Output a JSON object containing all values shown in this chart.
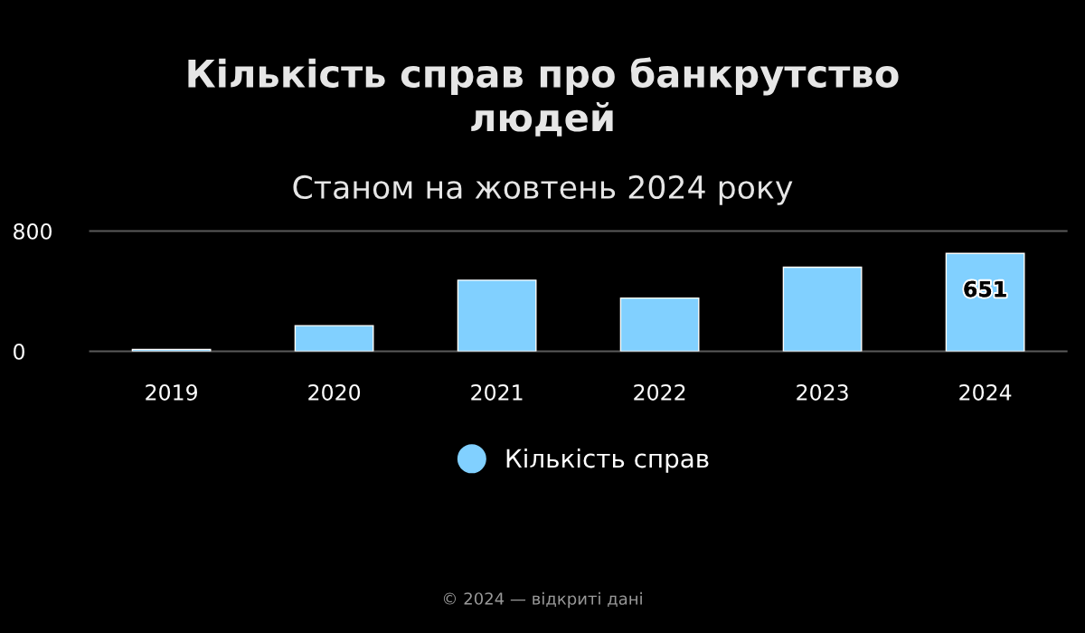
{
  "chart_data": {
    "type": "bar",
    "title": "Кількість справ про банкрутство\nлюдей",
    "subtitle": "Станом на жовтень 2024 року",
    "categories": [
      "2019",
      "2020",
      "2021",
      "2022",
      "2023",
      "2024"
    ],
    "series": [
      {
        "name": "Кількість справ",
        "color": "#81d0ff",
        "values": [
          13,
          171,
          473,
          354,
          559,
          651
        ],
        "value_labels": [
          null,
          null,
          null,
          null,
          null,
          "651"
        ]
      }
    ],
    "ylim": [
      0,
      800
    ],
    "yticks": [
      0,
      800
    ],
    "legend": "bottom",
    "annotations": [
      "© 2024 — відкриті дані"
    ]
  }
}
